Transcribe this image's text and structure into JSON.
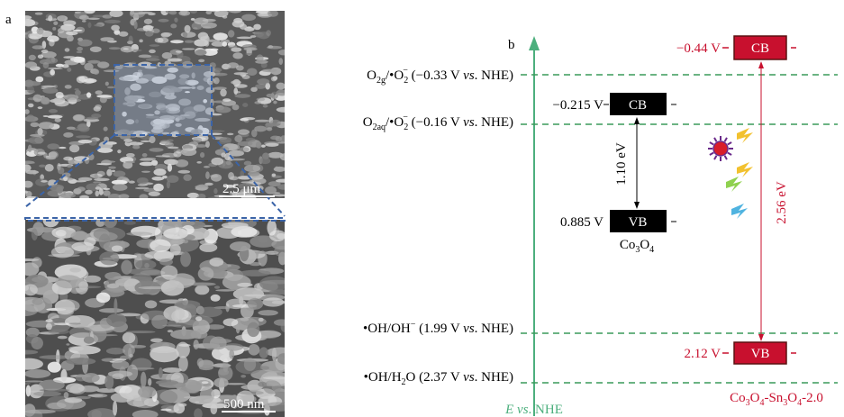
{
  "panel_a": {
    "label": "a",
    "scale_top": "2.5 μm",
    "scale_bottom": "500 nm"
  },
  "panel_b": {
    "label": "b",
    "axis_label": [
      "E vs",
      ". NHE"
    ],
    "levels": [
      [
        "O",
        "2g",
        "/•O",
        "2",
        "−",
        " (−0.33 V ",
        "vs",
        ". NHE)"
      ],
      [
        "O",
        "2aq",
        "/•O",
        "2",
        "−",
        " (−0.16 V ",
        "vs",
        ". NHE)"
      ],
      [
        "•OH/OH",
        "−",
        " (1.99 V ",
        "vs",
        ". NHE)"
      ],
      [
        "•OH/H",
        "2",
        "O (2.37 V ",
        "vs",
        ". NHE)"
      ]
    ],
    "co3o4": {
      "name": [
        "Co",
        "3",
        "O",
        "4"
      ],
      "cb": "CB",
      "vb": "VB",
      "cb_potential": "−0.215 V",
      "vb_potential": "0.885 V",
      "gap": "1.10 eV"
    },
    "composite": {
      "name": [
        "Co",
        "3",
        "O",
        "4",
        "-Sn",
        "3",
        "O",
        "4",
        "-2.0"
      ],
      "cb": "CB",
      "vb": "VB",
      "cb_potential": "−0.44 V",
      "vb_potential": "2.12 V",
      "gap": "2.56 eV"
    }
  }
}
